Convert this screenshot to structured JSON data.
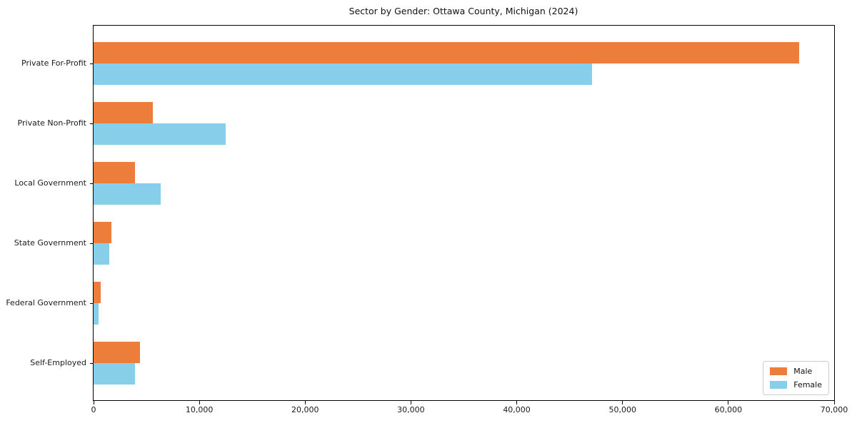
{
  "title": "Sector by Gender: Ottawa County, Michigan (2024)",
  "colors": {
    "male": "#ed7d3a",
    "female": "#87ceeb",
    "axis": "#000000",
    "text": "#1a1a1a",
    "legend_border": "#cccccc"
  },
  "legend": {
    "position": "lower right",
    "items": [
      {
        "label": "Male",
        "swatch": "male-swatch"
      },
      {
        "label": "Female",
        "swatch": "female-swatch"
      }
    ]
  },
  "chart_data": {
    "type": "bar",
    "orientation": "horizontal",
    "title": "Sector by Gender: Ottawa County, Michigan (2024)",
    "categories": [
      "Private For-Profit",
      "Private Non-Profit",
      "Local Government",
      "State Government",
      "Federal Government",
      "Self-Employed"
    ],
    "series": [
      {
        "name": "Male",
        "color": "#ed7d3a",
        "values": [
          66700,
          5600,
          3900,
          1700,
          680,
          4400
        ]
      },
      {
        "name": "Female",
        "color": "#87ceeb",
        "values": [
          47100,
          12500,
          6350,
          1500,
          470,
          3900
        ]
      }
    ],
    "xlabel": "",
    "ylabel": "",
    "xlim": [
      0,
      70000
    ],
    "xticks": [
      0,
      10000,
      20000,
      30000,
      40000,
      50000,
      60000,
      70000
    ],
    "xtick_labels": [
      "0",
      "10,000",
      "20,000",
      "30,000",
      "40,000",
      "50,000",
      "60,000",
      "70,000"
    ],
    "grid": false,
    "legend_position": "lower right"
  }
}
